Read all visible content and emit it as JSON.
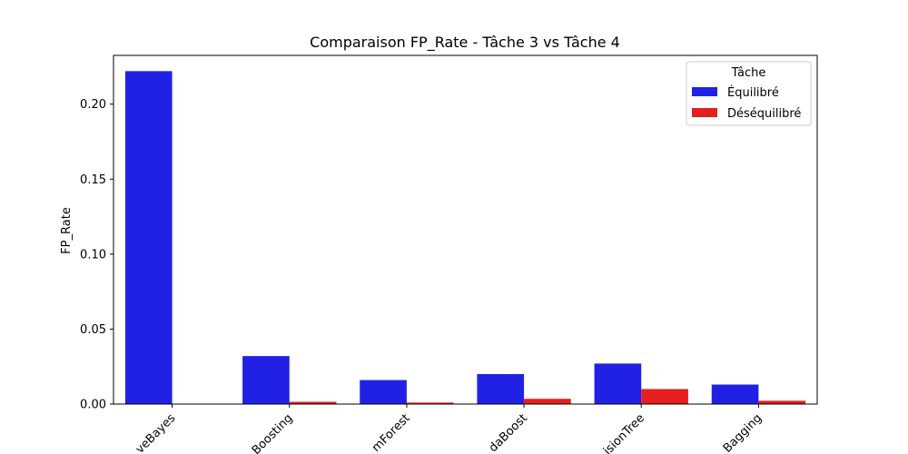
{
  "chart_data": {
    "type": "bar",
    "title": "Comparaison FP_Rate - Tâche 3 vs Tâche 4",
    "xlabel": "",
    "ylabel": "FP_Rate",
    "categories": [
      "NaiveBayes",
      "GradientBoosting",
      "RandomForest",
      "AdaBoost",
      "DecisionTree",
      "Bagging"
    ],
    "category_tick_labels": [
      "veBayes",
      "Boosting",
      "mForest",
      "daBoost",
      "isionTree",
      "Bagging"
    ],
    "ylim": [
      0,
      0.2325
    ],
    "yticks": [
      0.0,
      0.05,
      0.1,
      0.15,
      0.2
    ],
    "ytick_labels": [
      "0.00",
      "0.05",
      "0.10",
      "0.15",
      "0.20"
    ],
    "legend": {
      "title": "Tâche",
      "placement": "top-right"
    },
    "grid": false,
    "series": [
      {
        "name": "Équilibré",
        "color": "#2121e5",
        "values": [
          0.222,
          0.032,
          0.016,
          0.02,
          0.027,
          0.013
        ]
      },
      {
        "name": "Déséquilibré",
        "color": "#e51e1e",
        "values": [
          0.0,
          0.0015,
          0.001,
          0.0035,
          0.01,
          0.0022
        ]
      }
    ]
  }
}
